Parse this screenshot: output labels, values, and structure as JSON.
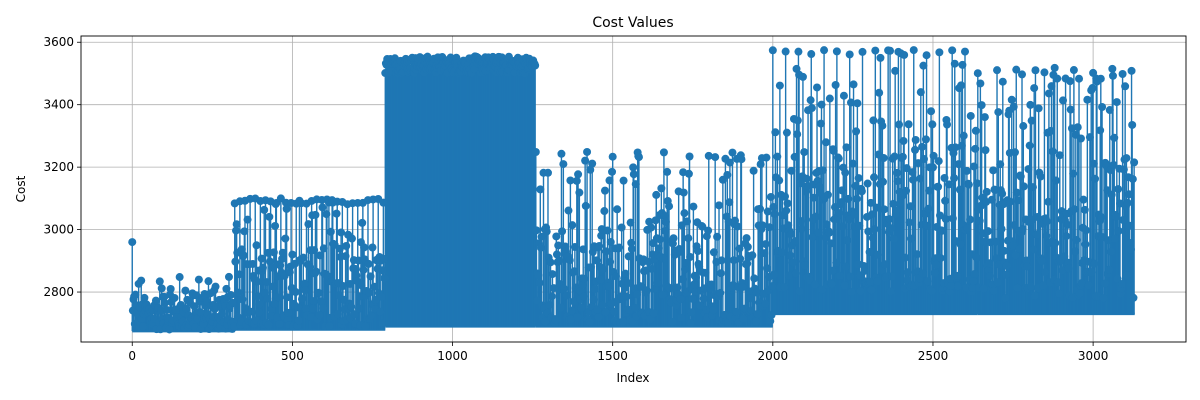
{
  "chart_data": {
    "type": "stem",
    "title": "Cost Values",
    "xlabel": "Index",
    "ylabel": "Cost",
    "xlim": [
      -160,
      3290
    ],
    "ylim": [
      2640,
      3620
    ],
    "xticks": [
      0,
      500,
      1000,
      1500,
      2000,
      2500,
      3000
    ],
    "yticks": [
      2800,
      3000,
      3200,
      3400,
      3600
    ],
    "grid": true,
    "color": "#1f77b4",
    "n_points": 3130,
    "segments": [
      {
        "x_range": [
          0,
          320
        ],
        "baseline": 2675,
        "low": 2680,
        "high": 2855,
        "first_value": 2960
      },
      {
        "x_range": [
          320,
          790
        ],
        "baseline": 2680,
        "low": 2690,
        "high": 3105,
        "period": 16,
        "period_peak": 3100
      },
      {
        "x_range": [
          790,
          1260
        ],
        "baseline": 2690,
        "low": 3500,
        "high": 3555
      },
      {
        "x_range": [
          1260,
          2000
        ],
        "baseline": 2690,
        "low": 2700,
        "high": 3250,
        "period": 80,
        "period_peak": 3250
      },
      {
        "x_range": [
          2000,
          2640
        ],
        "baseline": 2730,
        "low": 2800,
        "high": 3575,
        "period": 40,
        "period_peak": 3575
      },
      {
        "x_range": [
          2640,
          3130
        ],
        "baseline": 2730,
        "low": 2780,
        "high": 3525,
        "period": 60,
        "period_peak": 3520
      }
    ]
  }
}
